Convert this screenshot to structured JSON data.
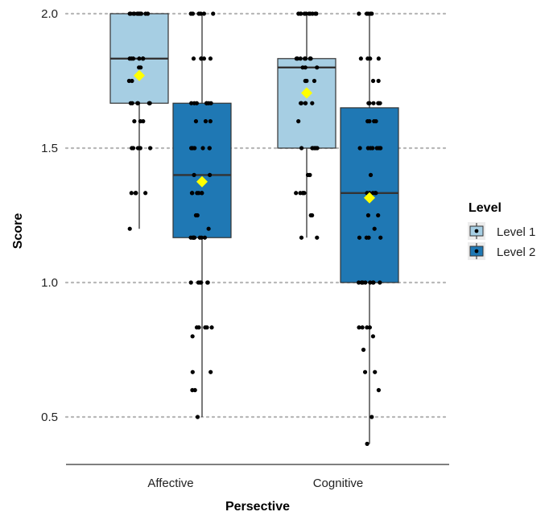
{
  "chart_data": {
    "type": "box",
    "title": "",
    "xlabel": "Persective",
    "ylabel": "Score",
    "categories": [
      "Affective",
      "Cognitive"
    ],
    "ylim": [
      0.32,
      2.03
    ],
    "yticks": [
      0.5,
      1.0,
      1.5,
      2.0
    ],
    "ytick_labels": [
      "0.5",
      "1.0",
      "1.5",
      "2.0"
    ],
    "grid": "horizontal-dotted",
    "legend": {
      "title": "Level",
      "placement": "right"
    },
    "mean_marker": {
      "shape": "diamond",
      "color": "#ffff00"
    },
    "point_color": "#000000",
    "series": [
      {
        "name": "Level 1",
        "color": "#a6cee3",
        "boxes": [
          {
            "category": "Affective",
            "min": 1.2,
            "q1": 1.667,
            "median": 1.833,
            "q3": 2.0,
            "max": 2.0,
            "mean": 1.77,
            "points": [
              2.0,
              2.0,
              2.0,
              2.0,
              2.0,
              2.0,
              2.0,
              2.0,
              2.0,
              2.0,
              2.0,
              2.0,
              1.833,
              1.833,
              1.833,
              1.833,
              1.833,
              1.833,
              1.8,
              1.8,
              1.75,
              1.75,
              1.667,
              1.667,
              1.667,
              1.667,
              1.667,
              1.667,
              1.667,
              1.6,
              1.6,
              1.6,
              1.5,
              1.5,
              1.5,
              1.5,
              1.5,
              1.333,
              1.333,
              1.333,
              1.333,
              1.333,
              1.2
            ]
          },
          {
            "category": "Cognitive",
            "min": 1.167,
            "q1": 1.5,
            "median": 1.8,
            "q3": 1.833,
            "max": 2.0,
            "mean": 1.705,
            "points": [
              2.0,
              2.0,
              2.0,
              2.0,
              2.0,
              2.0,
              2.0,
              2.0,
              2.0,
              2.0,
              1.833,
              1.833,
              1.833,
              1.833,
              1.833,
              1.833,
              1.833,
              1.8,
              1.8,
              1.8,
              1.75,
              1.75,
              1.75,
              1.667,
              1.667,
              1.667,
              1.667,
              1.667,
              1.6,
              1.5,
              1.5,
              1.5,
              1.5,
              1.5,
              1.5,
              1.5,
              1.4,
              1.4,
              1.333,
              1.333,
              1.333,
              1.333,
              1.333,
              1.25,
              1.25,
              1.167,
              1.167
            ]
          }
        ]
      },
      {
        "name": "Level 2",
        "color": "#1f78b4",
        "boxes": [
          {
            "category": "Affective",
            "min": 0.5,
            "q1": 1.167,
            "median": 1.4,
            "q3": 1.667,
            "max": 2.0,
            "mean": 1.375,
            "points": [
              2.0,
              2.0,
              2.0,
              2.0,
              2.0,
              2.0,
              1.833,
              1.833,
              1.833,
              1.833,
              1.833,
              1.667,
              1.667,
              1.667,
              1.667,
              1.667,
              1.667,
              1.667,
              1.6,
              1.6,
              1.6,
              1.5,
              1.5,
              1.5,
              1.5,
              1.5,
              1.5,
              1.5,
              1.4,
              1.4,
              1.333,
              1.333,
              1.333,
              1.333,
              1.333,
              1.333,
              1.25,
              1.25,
              1.2,
              1.167,
              1.167,
              1.167,
              1.167,
              1.167,
              1.167,
              1.167,
              1.167,
              1.0,
              1.0,
              1.0,
              1.0,
              1.0,
              1.0,
              0.833,
              0.833,
              0.833,
              0.833,
              0.833,
              0.8,
              0.667,
              0.667,
              0.6,
              0.6,
              0.5
            ]
          },
          {
            "category": "Cognitive",
            "min": 0.4,
            "q1": 1.0,
            "median": 1.333,
            "q3": 1.65,
            "max": 2.0,
            "mean": 1.315,
            "points": [
              2.0,
              2.0,
              2.0,
              2.0,
              2.0,
              1.833,
              1.833,
              1.833,
              1.833,
              1.75,
              1.75,
              1.667,
              1.667,
              1.667,
              1.667,
              1.667,
              1.667,
              1.6,
              1.6,
              1.6,
              1.6,
              1.5,
              1.5,
              1.5,
              1.5,
              1.5,
              1.5,
              1.5,
              1.5,
              1.4,
              1.333,
              1.333,
              1.333,
              1.333,
              1.333,
              1.25,
              1.25,
              1.2,
              1.167,
              1.167,
              1.167,
              1.167,
              1.0,
              1.0,
              1.0,
              1.0,
              1.0,
              1.0,
              1.0,
              1.0,
              1.0,
              0.833,
              0.833,
              0.833,
              0.833,
              0.8,
              0.75,
              0.667,
              0.667,
              0.6,
              0.5,
              0.4
            ]
          }
        ]
      }
    ]
  }
}
